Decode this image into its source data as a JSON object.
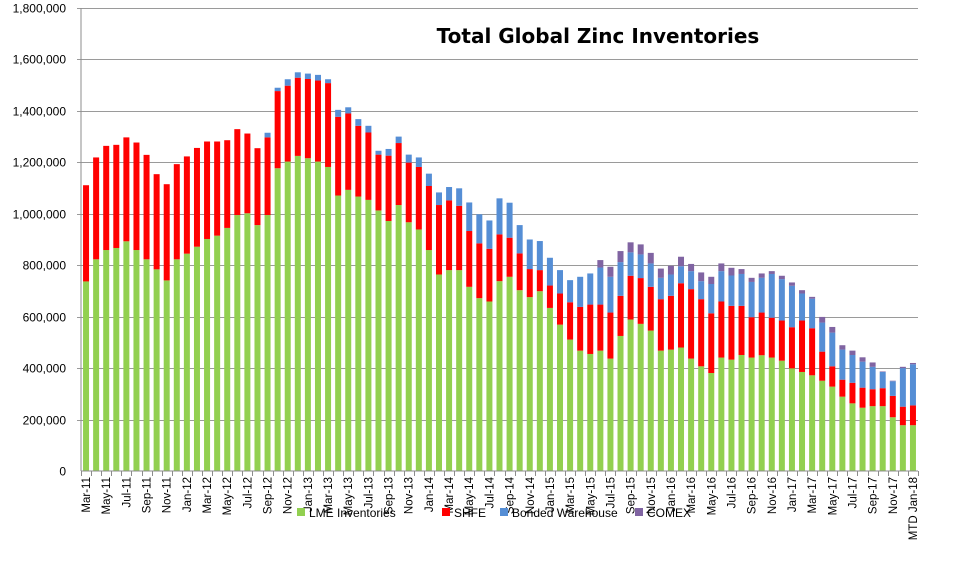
{
  "chart_data": {
    "type": "bar",
    "stacked": true,
    "title": "Total Global Zinc Inventories",
    "xlabel": "",
    "ylabel": "",
    "ylim": [
      0,
      1800000
    ],
    "y_ticks": [
      0,
      200000,
      400000,
      600000,
      800000,
      1000000,
      1200000,
      1400000,
      1600000,
      1800000
    ],
    "y_tick_labels": [
      "0",
      "200,000",
      "400,000",
      "600,000",
      "800,000",
      "1,000,000",
      "1,200,000",
      "1,400,000",
      "1,600,000",
      "1,800,000"
    ],
    "grid": true,
    "legend_position": "bottom",
    "x_tick_every": 2,
    "x_tick_labels": [
      "Mar-11",
      "May-11",
      "Jul-11",
      "Sep-11",
      "Nov-11",
      "Jan-12",
      "Mar-12",
      "May-12",
      "Jul-12",
      "Sep-12",
      "Nov-12",
      "Jan-13",
      "Mar-13",
      "May-13",
      "Jul-13",
      "Sep-13",
      "Nov-13",
      "Jan-14",
      "Mar-14",
      "May-14",
      "Jul-14",
      "Sep-14",
      "Nov-14",
      "Jan-15",
      "Mar-15",
      "May-15",
      "Jul-15",
      "Sep-15",
      "Nov-15",
      "Jan-16",
      "Mar-16",
      "May-16",
      "Jul-16",
      "Sep-16",
      "Nov-16",
      "Jan-17",
      "Mar-17",
      "May-17",
      "Jul-17",
      "Sep-17",
      "Nov-17",
      "MTD Jan-18"
    ],
    "series": [
      {
        "name": "LME Inventories",
        "color": "#92d050",
        "values": [
          737000,
          823000,
          859000,
          867000,
          893000,
          859000,
          823000,
          784000,
          741000,
          823000,
          845000,
          872000,
          902000,
          915000,
          945000,
          995000,
          1002000,
          956000,
          995000,
          1177000,
          1203000,
          1225000,
          1216000,
          1203000,
          1182000,
          1071000,
          1093000,
          1067000,
          1054000,
          1013000,
          972000,
          1034000,
          967000,
          939000,
          859000,
          764000,
          781000,
          781000,
          716000,
          672000,
          659000,
          738000,
          755000,
          703000,
          676000,
          699000,
          634000,
          569000,
          511000,
          468000,
          455000,
          468000,
          437000,
          525000,
          589000,
          572000,
          546000,
          468000,
          472000,
          480000,
          437000,
          407000,
          381000,
          441000,
          433000,
          451000,
          441000,
          450000,
          441000,
          429000,
          399000,
          385000,
          372000,
          351000,
          328000,
          289000,
          263000,
          246000,
          252000,
          252000,
          209000,
          178000,
          178000
        ]
      },
      {
        "name": "SHFE",
        "color": "#ff0000",
        "values": [
          374000,
          396000,
          405000,
          401000,
          404000,
          418000,
          406000,
          370000,
          374000,
          370000,
          378000,
          384000,
          379000,
          366000,
          341000,
          334000,
          310000,
          299000,
          302000,
          300000,
          295000,
          304000,
          308000,
          315000,
          326000,
          306000,
          297000,
          275000,
          262000,
          217000,
          254000,
          241000,
          232000,
          243000,
          249000,
          270000,
          271000,
          250000,
          217000,
          213000,
          205000,
          182000,
          152000,
          143000,
          109000,
          82000,
          87000,
          121000,
          145000,
          170000,
          192000,
          179000,
          179000,
          156000,
          170000,
          178000,
          170000,
          200000,
          209000,
          250000,
          270000,
          261000,
          232000,
          218000,
          209000,
          191000,
          157000,
          166000,
          155000,
          156000,
          160000,
          200000,
          183000,
          113000,
          79000,
          66000,
          80000,
          78000,
          66000,
          70000,
          83000,
          72000,
          77000
        ]
      },
      {
        "name": "Bonded Warehouse",
        "color": "#558ed5",
        "values": [
          0,
          0,
          0,
          0,
          0,
          0,
          0,
          0,
          0,
          0,
          0,
          0,
          0,
          0,
          0,
          0,
          0,
          0,
          18000,
          13000,
          25000,
          21000,
          21000,
          22000,
          15000,
          27000,
          24000,
          26000,
          26000,
          15000,
          26000,
          25000,
          31000,
          37000,
          48000,
          49000,
          52000,
          68000,
          111000,
          113000,
          110000,
          140000,
          136000,
          110000,
          115000,
          113000,
          108000,
          91000,
          86000,
          117000,
          121000,
          144000,
          139000,
          131000,
          91000,
          92000,
          91000,
          83000,
          83000,
          66000,
          70000,
          70000,
          114000,
          118000,
          118000,
          124000,
          137000,
          135000,
          170000,
          161000,
          161000,
          105000,
          115000,
          113000,
          131000,
          117000,
          108000,
          101000,
          87000,
          63000,
          57000,
          150000,
          160000
        ]
      },
      {
        "name": "COMEX",
        "color": "#8064a2",
        "values": [
          0,
          0,
          0,
          0,
          0,
          0,
          0,
          0,
          0,
          0,
          0,
          0,
          0,
          0,
          0,
          0,
          0,
          0,
          0,
          0,
          0,
          0,
          0,
          0,
          0,
          0,
          0,
          0,
          0,
          0,
          0,
          0,
          0,
          0,
          0,
          0,
          0,
          0,
          0,
          0,
          0,
          0,
          0,
          0,
          0,
          0,
          0,
          0,
          0,
          0,
          0,
          29000,
          39000,
          43000,
          39000,
          39000,
          41000,
          36000,
          34000,
          37000,
          28000,
          34000,
          28000,
          30000,
          30000,
          19000,
          16000,
          17000,
          11000,
          13000,
          13000,
          13000,
          7000,
          22000,
          22000,
          17000,
          17000,
          17000,
          17000,
          2000,
          2000,
          5000,
          5000
        ]
      }
    ]
  }
}
